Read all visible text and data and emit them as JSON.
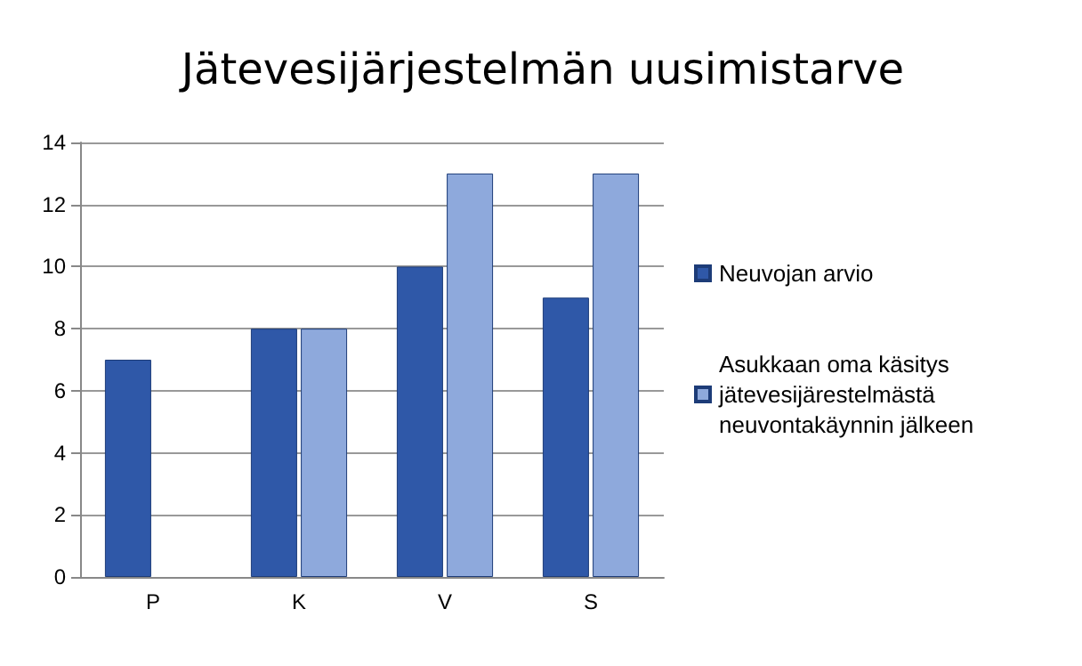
{
  "chart_data": {
    "type": "bar",
    "title": "Jätevesijärjestelmän uusimistarve",
    "categories": [
      "P",
      "K",
      "V",
      "S"
    ],
    "series": [
      {
        "name": "Neuvojan arvio",
        "color": "#2f58a8",
        "values": [
          7,
          8,
          10,
          9
        ]
      },
      {
        "name": "Asukkaan oma käsitys jätevesijärestelmästä neuvontakäynnin jälkeen",
        "color": "#8ea9dc",
        "values": [
          null,
          8,
          13,
          13
        ]
      }
    ],
    "ylim": [
      0,
      14
    ],
    "yticks": [
      0,
      2,
      4,
      6,
      8,
      10,
      12,
      14
    ],
    "grid": "y",
    "legend": "right"
  }
}
